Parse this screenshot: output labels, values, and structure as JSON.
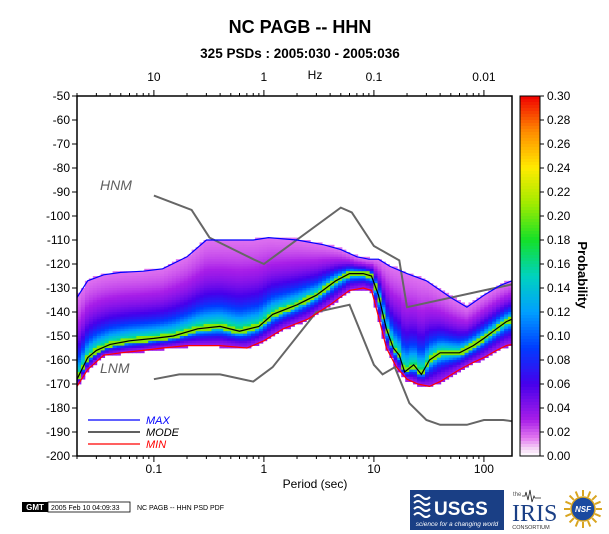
{
  "chart_data": {
    "type": "heatmap",
    "title": "NC PAGB -- HHN",
    "subtitle": "325 PSDs : 2005:030 - 2005:036",
    "xlabel": "Period (sec)",
    "top_axis_unit": "Hz",
    "xscale": "log",
    "xlim": [
      0.02,
      180
    ],
    "ylim": [
      -200,
      -50
    ],
    "yticks": [
      -50,
      -60,
      -70,
      -80,
      -90,
      -100,
      -110,
      -120,
      -130,
      -140,
      -150,
      -160,
      -170,
      -180,
      -190,
      -200
    ],
    "bottom_ticks": [
      {
        "value": 0.1,
        "label": "0.1"
      },
      {
        "value": 1,
        "label": "1"
      },
      {
        "value": 10,
        "label": "10"
      },
      {
        "value": 100,
        "label": "100"
      }
    ],
    "top_ticks": [
      {
        "value": 0.1,
        "label": "10"
      },
      {
        "value": 1,
        "label": "1"
      },
      {
        "value": 10,
        "label": "0.1"
      },
      {
        "value": 100,
        "label": "0.01"
      }
    ],
    "colorbar": {
      "label": "Probability",
      "min": 0.0,
      "max": 0.3,
      "ticks": [
        "0.30",
        "0.28",
        "0.26",
        "0.24",
        "0.22",
        "0.20",
        "0.18",
        "0.16",
        "0.14",
        "0.12",
        "0.10",
        "0.08",
        "0.06",
        "0.04",
        "0.02",
        "0.00"
      ]
    },
    "reference_curves": [
      {
        "name": "HNM",
        "color": "#666666",
        "points": [
          [
            0.1,
            -91.5
          ],
          [
            0.22,
            -97.5
          ],
          [
            0.32,
            -109
          ],
          [
            0.8,
            -118
          ],
          [
            1,
            -120
          ],
          [
            5,
            -96.5
          ],
          [
            6.3,
            -98.5
          ],
          [
            10,
            -112.5
          ],
          [
            17,
            -118.5
          ],
          [
            20,
            -138
          ],
          [
            100,
            -131
          ],
          [
            180,
            -128.5
          ]
        ]
      },
      {
        "name": "LNM",
        "color": "#666666",
        "points": [
          [
            0.1,
            -168
          ],
          [
            0.17,
            -166
          ],
          [
            0.4,
            -166
          ],
          [
            0.8,
            -169
          ],
          [
            1.2,
            -163
          ],
          [
            3,
            -140
          ],
          [
            6,
            -137
          ],
          [
            10,
            -162
          ],
          [
            12,
            -166
          ],
          [
            15.5,
            -163
          ],
          [
            21,
            -178
          ],
          [
            30,
            -185
          ],
          [
            40,
            -187
          ],
          [
            70,
            -187
          ],
          [
            100,
            -185
          ],
          [
            150,
            -185
          ],
          [
            180,
            -185.5
          ]
        ]
      }
    ],
    "series": [
      {
        "name": "MAX",
        "color": "#0000ff",
        "points": [
          [
            0.02,
            -134
          ],
          [
            0.025,
            -127
          ],
          [
            0.035,
            -124.5
          ],
          [
            0.05,
            -123.5
          ],
          [
            0.08,
            -123
          ],
          [
            0.12,
            -122
          ],
          [
            0.2,
            -117
          ],
          [
            0.3,
            -110
          ],
          [
            0.5,
            -110
          ],
          [
            0.8,
            -110
          ],
          [
            1.1,
            -109
          ],
          [
            2,
            -110
          ],
          [
            3.5,
            -112
          ],
          [
            5,
            -114
          ],
          [
            7,
            -117
          ],
          [
            9,
            -118
          ],
          [
            11,
            -118
          ],
          [
            14,
            -121
          ],
          [
            20,
            -124
          ],
          [
            30,
            -127
          ],
          [
            50,
            -134
          ],
          [
            70,
            -138
          ],
          [
            100,
            -133
          ],
          [
            140,
            -129
          ],
          [
            180,
            -127
          ]
        ]
      },
      {
        "name": "MODE",
        "color": "#000000",
        "points": [
          [
            0.02,
            -168
          ],
          [
            0.025,
            -159
          ],
          [
            0.03,
            -156
          ],
          [
            0.04,
            -153.5
          ],
          [
            0.06,
            -152
          ],
          [
            0.1,
            -151
          ],
          [
            0.15,
            -150
          ],
          [
            0.25,
            -147
          ],
          [
            0.4,
            -146
          ],
          [
            0.6,
            -148
          ],
          [
            0.9,
            -146
          ],
          [
            1.2,
            -141
          ],
          [
            2,
            -137
          ],
          [
            3,
            -133
          ],
          [
            4.5,
            -127
          ],
          [
            6,
            -124
          ],
          [
            8,
            -124
          ],
          [
            9.5,
            -125
          ],
          [
            11,
            -133
          ],
          [
            13,
            -147
          ],
          [
            15,
            -155
          ],
          [
            17,
            -158
          ],
          [
            19,
            -165
          ],
          [
            23,
            -162
          ],
          [
            27,
            -166
          ],
          [
            32,
            -160
          ],
          [
            40,
            -157
          ],
          [
            60,
            -157
          ],
          [
            80,
            -154
          ],
          [
            100,
            -151
          ],
          [
            130,
            -147
          ],
          [
            160,
            -144
          ],
          [
            180,
            -143
          ]
        ]
      },
      {
        "name": "MIN",
        "color": "#ff0000",
        "points": [
          [
            0.02,
            -171
          ],
          [
            0.025,
            -164
          ],
          [
            0.035,
            -158
          ],
          [
            0.05,
            -157
          ],
          [
            0.08,
            -156
          ],
          [
            0.12,
            -155
          ],
          [
            0.2,
            -154
          ],
          [
            0.4,
            -154
          ],
          [
            0.7,
            -155
          ],
          [
            1,
            -152
          ],
          [
            1.5,
            -147
          ],
          [
            2.5,
            -143
          ],
          [
            4,
            -137
          ],
          [
            6,
            -131
          ],
          [
            8,
            -130
          ],
          [
            9.5,
            -131
          ],
          [
            11,
            -142
          ],
          [
            13,
            -155
          ],
          [
            16,
            -163
          ],
          [
            20,
            -168
          ],
          [
            25,
            -170
          ],
          [
            32,
            -171
          ],
          [
            40,
            -169
          ],
          [
            60,
            -164
          ],
          [
            80,
            -161
          ],
          [
            100,
            -159
          ],
          [
            130,
            -156
          ],
          [
            160,
            -154
          ],
          [
            180,
            -153.5
          ]
        ]
      }
    ],
    "legend": [
      "MAX",
      "MODE",
      "MIN"
    ],
    "legend_placement": "bottom-left"
  },
  "footer": {
    "gmt_badge": "GMT",
    "timestamp": "2005 Feb 10 04:09:33",
    "file_label": "NC PAGB -- HHN PSD PDF",
    "usgs_logo_text": "USGS",
    "usgs_tagline": "science for a changing world",
    "iris_the": "the",
    "iris_logo_text": "IRIS",
    "iris_consortium": "CONSORTIUM",
    "nsf_text": "NSF"
  },
  "colors": {
    "background": "#ffffff",
    "noise_model_line": "#666666",
    "max_line": "#0000ff",
    "mode_line": "#000000",
    "min_line": "#ff0000"
  }
}
